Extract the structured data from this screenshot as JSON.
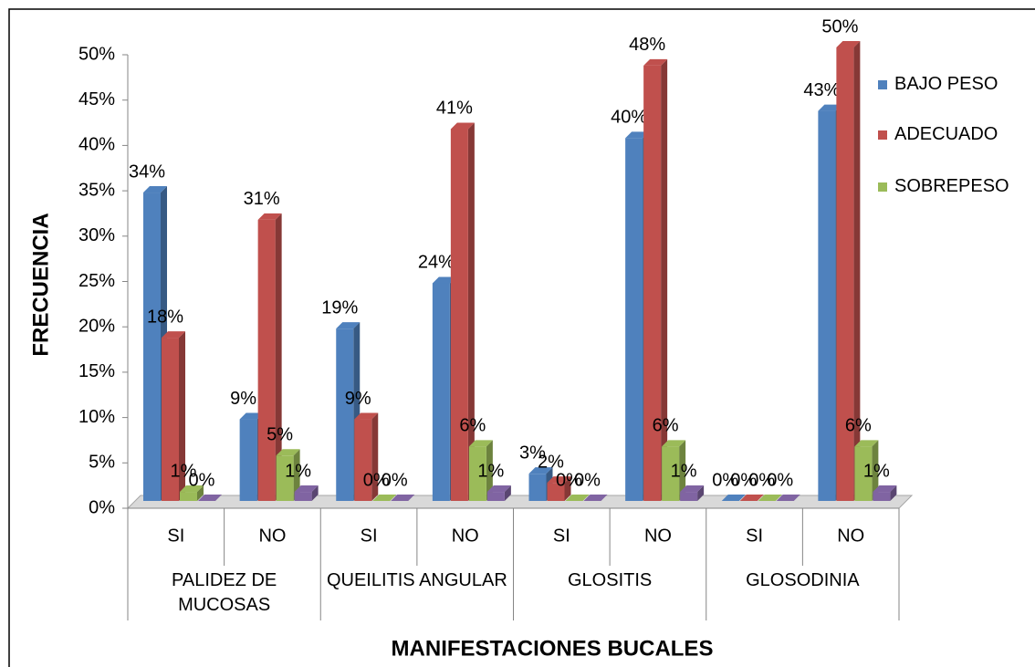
{
  "chart_data": {
    "type": "bar3d",
    "x_label": "MANIFESTACIONES BUCALES",
    "y_label": "FRECUENCIA",
    "categories": [
      "SI",
      "NO",
      "SI",
      "NO",
      "SI",
      "NO",
      "SI",
      "NO"
    ],
    "groups": [
      "PALIDEZ DE MUCOSAS",
      "QUEILITIS ANGULAR",
      "GLOSITIS",
      "GLOSODINIA"
    ],
    "series": [
      {
        "name": "BAJO PESO",
        "color": "#4f81bd",
        "values": [
          34,
          9,
          19,
          24,
          3,
          40,
          0,
          43
        ],
        "value_labels": [
          "34%",
          "9%",
          "19%",
          "24%",
          "3%",
          "40%",
          "0%",
          "43%"
        ]
      },
      {
        "name": "ADECUADO",
        "color": "#c0504d",
        "values": [
          18,
          31,
          9,
          41,
          2,
          48,
          0,
          50
        ],
        "value_labels": [
          "18%",
          "31%",
          "9%",
          "41%",
          "2%",
          "48%",
          "0%",
          "50%"
        ]
      },
      {
        "name": "SOBREPESO",
        "color": "#9bbb59",
        "values": [
          1,
          5,
          0,
          6,
          0,
          6,
          0,
          6
        ],
        "value_labels": [
          "1%",
          "5%",
          "0%",
          "6%",
          "0%",
          "6%",
          "0%",
          "6%"
        ]
      },
      {
        "color": "#8064a2",
        "values": [
          0,
          1,
          0,
          1,
          0,
          1,
          0,
          1
        ],
        "value_labels": [
          "0%",
          "1%",
          "0%",
          "1%",
          "0%",
          "1%",
          "0%",
          "1%"
        ]
      }
    ],
    "ylim": [
      0,
      50
    ],
    "yticks": [
      {
        "value": 0,
        "label": "0%"
      },
      {
        "value": 5,
        "label": "5%"
      },
      {
        "value": 10,
        "label": "10%"
      },
      {
        "value": 15,
        "label": "15%"
      },
      {
        "value": 20,
        "label": "20%"
      },
      {
        "value": 25,
        "label": "25%"
      },
      {
        "value": 30,
        "label": "30%"
      },
      {
        "value": 35,
        "label": "35%"
      },
      {
        "value": 40,
        "label": "40%"
      },
      {
        "value": 45,
        "label": "45%"
      },
      {
        "value": 50,
        "label": "50%"
      }
    ],
    "legend": "right"
  }
}
